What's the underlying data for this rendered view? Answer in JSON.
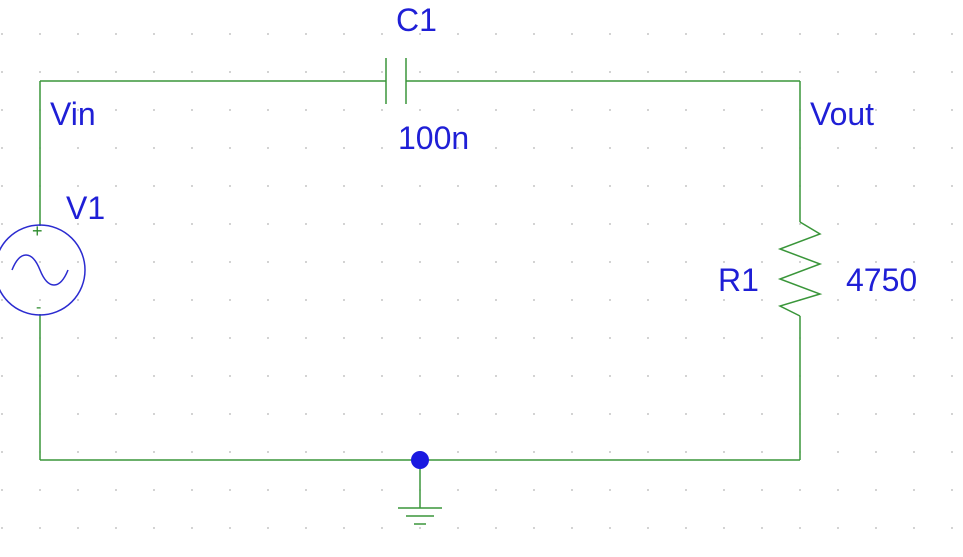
{
  "capacitor": {
    "ref": "C1",
    "value": "100n"
  },
  "resistor": {
    "ref": "R1",
    "value": "4750"
  },
  "source": {
    "ref": "V1",
    "plus": "+",
    "minus": "-"
  },
  "nets": {
    "input": "Vin",
    "output": "Vout"
  },
  "colors": {
    "wire": "#3a963a",
    "label": "#1f1fd6",
    "source_symbol": "#2b2bd0",
    "junction": "#1a1ae0",
    "grid_dot": "#9a9a9a"
  },
  "icons": {
    "source": "ac-voltage-source-icon",
    "ground": "ground-icon",
    "junction": "junction-dot"
  }
}
